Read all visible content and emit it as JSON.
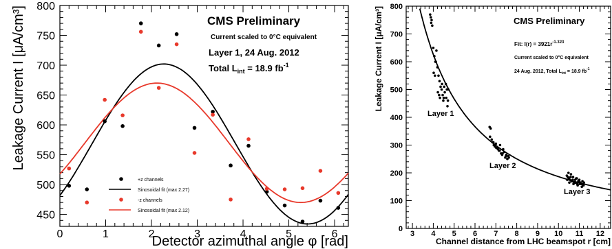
{
  "chart_data": [
    {
      "type": "scatter",
      "panel": "left",
      "xlabel": "Detector azimuthal angle φ [rad]",
      "ylabel": "Leakage Current I [μA/cm³]",
      "xlim": [
        0,
        6.3
      ],
      "ylim": [
        430,
        800
      ],
      "x_ticks": [
        "0",
        "1",
        "2",
        "3",
        "4",
        "5",
        "6"
      ],
      "y_ticks": [
        "450",
        "500",
        "550",
        "600",
        "650",
        "700",
        "750",
        "800"
      ],
      "annotations": {
        "title": "CMS Preliminary",
        "line1": "Current scaled to 0°C equivalent",
        "line2": "Layer 1, 24 Aug. 2012",
        "line3_prefix": "Total L",
        "line3_sub": "int",
        "line3_mid": " = 18.9 fb",
        "line3_sup": "-1"
      },
      "legend": [
        {
          "label": "+z channels",
          "kind": "marker",
          "color": "#000000"
        },
        {
          "label": "Sinosoidal fit (max 2.27)",
          "kind": "line",
          "color": "#000000"
        },
        {
          "label": "-z channels",
          "kind": "marker",
          "color": "#e8392b"
        },
        {
          "label": "Sinosoidal fit (max 2.12)",
          "kind": "line",
          "color": "#e8392b"
        }
      ],
      "series": [
        {
          "name": "+z channels",
          "color": "#000000",
          "x": [
            0.2,
            0.59,
            0.98,
            1.37,
            1.77,
            2.16,
            2.55,
            2.94,
            3.34,
            3.73,
            4.12,
            4.52,
            4.91,
            5.3,
            5.69,
            6.08
          ],
          "y": [
            498,
            492,
            606,
            598,
            770,
            733,
            752,
            595,
            622,
            532,
            565,
            488,
            465,
            438,
            473,
            461
          ]
        },
        {
          "name": "-z channels",
          "color": "#e8392b",
          "x": [
            0.2,
            0.59,
            0.98,
            1.37,
            1.77,
            2.16,
            2.55,
            2.94,
            3.34,
            3.73,
            4.12,
            4.52,
            4.91,
            5.3,
            5.69,
            6.08
          ],
          "y": [
            527,
            470,
            642,
            616,
            756,
            662,
            735,
            553,
            617,
            475,
            576,
            493,
            492,
            494,
            523,
            486
          ]
        }
      ],
      "fits": [
        {
          "name": "Sinosoidal fit (max 2.27)",
          "color": "#000000",
          "offset": 568,
          "amplitude": 134,
          "phase_max": 2.27
        },
        {
          "name": "Sinosoidal fit (max 2.12)",
          "color": "#e8392b",
          "offset": 570,
          "amplitude": 100,
          "phase_max": 2.12
        }
      ]
    },
    {
      "type": "scatter",
      "panel": "right",
      "xlabel": "Channel distance from LHC beamspot r [cm]",
      "ylabel": "Leakage Current I [μA/cm³]",
      "xlim": [
        2.7,
        12.5
      ],
      "ylim": [
        0,
        800
      ],
      "x_ticks": [
        "3",
        "4",
        "5",
        "6",
        "7",
        "8",
        "9",
        "10",
        "11",
        "12"
      ],
      "y_ticks": [
        "0",
        "100",
        "200",
        "300",
        "400",
        "500",
        "600",
        "700",
        "800"
      ],
      "annotations": {
        "title": "CMS Preliminary",
        "fit": "Fit: I(r) = 3921r",
        "fit_exp": "-1.323",
        "line1": "Current scaled to 0°C equivalent",
        "line2_prefix": "24 Aug. 2012, Total L",
        "line2_sub": "int",
        "line2_mid": " = 18.9 fb",
        "line2_sup": "-1",
        "layer_labels": [
          "Layer 1",
          "Layer 2",
          "Layer 3"
        ]
      },
      "fit": {
        "coefficient": 3921,
        "exponent": -1.323
      },
      "series": [
        {
          "name": "Layer 1",
          "color": "#000000",
          "x": [
            3.85,
            3.9,
            3.95,
            4.0,
            4.05,
            4.1,
            4.15,
            4.2,
            4.25,
            4.3,
            4.35,
            4.4,
            4.45,
            4.5,
            4.55,
            4.6,
            4.65,
            4.7,
            3.92,
            4.02,
            4.12,
            4.22,
            4.32,
            4.42,
            4.52,
            4.62,
            4.72,
            3.88,
            4.08,
            4.28,
            4.48,
            4.68
          ],
          "y": [
            770,
            740,
            730,
            650,
            620,
            600,
            640,
            580,
            550,
            530,
            510,
            500,
            480,
            470,
            490,
            520,
            500,
            460,
            750,
            560,
            600,
            490,
            470,
            520,
            510,
            470,
            500,
            760,
            550,
            480,
            460,
            440
          ]
        },
        {
          "name": "Layer 2",
          "color": "#000000",
          "x": [
            6.7,
            6.75,
            6.8,
            6.85,
            6.9,
            6.95,
            7.0,
            7.05,
            7.1,
            7.15,
            7.2,
            7.25,
            7.3,
            7.35,
            7.4,
            7.45,
            7.5,
            7.55,
            7.6,
            6.72,
            6.88,
            7.02,
            7.18,
            7.32,
            7.48,
            7.62
          ],
          "y": [
            365,
            360,
            320,
            310,
            300,
            295,
            305,
            290,
            285,
            280,
            300,
            270,
            265,
            285,
            275,
            255,
            265,
            250,
            260,
            330,
            310,
            290,
            280,
            270,
            260,
            255
          ]
        },
        {
          "name": "Layer 3",
          "color": "#000000",
          "x": [
            10.4,
            10.45,
            10.5,
            10.55,
            10.6,
            10.65,
            10.7,
            10.75,
            10.8,
            10.85,
            10.9,
            10.95,
            11.0,
            11.05,
            11.1,
            11.15,
            11.2,
            10.42,
            10.52,
            10.62,
            10.72,
            10.82,
            10.92,
            11.02,
            11.12,
            11.22,
            10.48,
            10.58,
            10.68,
            10.78,
            10.88,
            10.98,
            11.08,
            11.18
          ],
          "y": [
            190,
            185,
            180,
            175,
            195,
            170,
            185,
            165,
            175,
            180,
            160,
            170,
            175,
            165,
            160,
            170,
            155,
            175,
            165,
            170,
            160,
            165,
            155,
            160,
            150,
            165,
            200,
            185,
            175,
            165,
            180,
            170,
            160,
            155
          ]
        }
      ]
    }
  ]
}
